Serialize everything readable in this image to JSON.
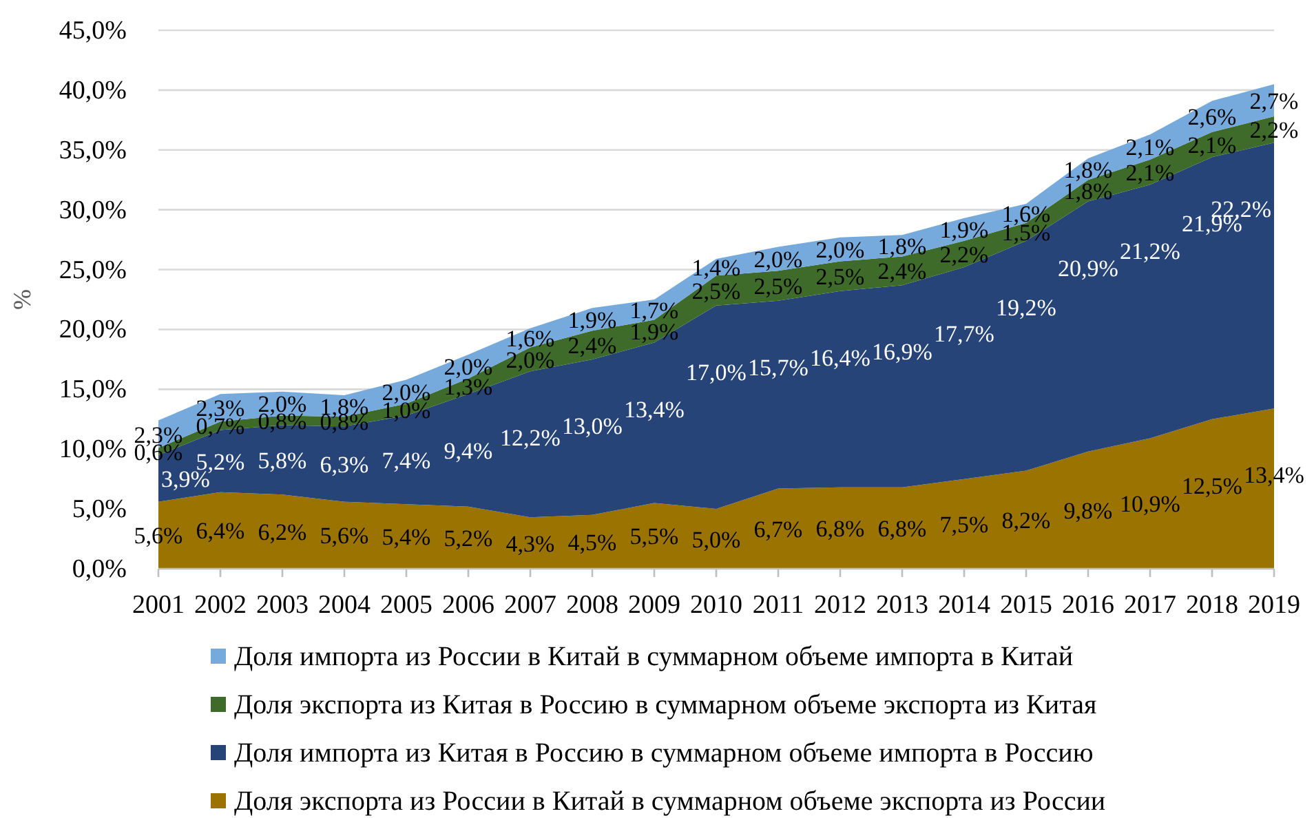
{
  "chart_data": {
    "type": "area",
    "stacked": true,
    "ylabel": "%",
    "categories": [
      "2001",
      "2002",
      "2003",
      "2004",
      "2005",
      "2006",
      "2007",
      "2008",
      "2009",
      "2010",
      "2011",
      "2012",
      "2013",
      "2014",
      "2015",
      "2016",
      "2017",
      "2018",
      "2019"
    ],
    "ylim": [
      0,
      45
    ],
    "yticks": [
      {
        "value": 0,
        "label": "0,0%"
      },
      {
        "value": 5,
        "label": "5,0%"
      },
      {
        "value": 10,
        "label": "10,0%"
      },
      {
        "value": 15,
        "label": "15,0%"
      },
      {
        "value": 20,
        "label": "20,0%"
      },
      {
        "value": 25,
        "label": "25,0%"
      },
      {
        "value": 30,
        "label": "30,0%"
      },
      {
        "value": 35,
        "label": "35,0%"
      },
      {
        "value": 40,
        "label": "40,0%"
      },
      {
        "value": 45,
        "label": "45,0%"
      }
    ],
    "grid": "y",
    "legend": "bottom",
    "series": [
      {
        "name": "Доля экспорта из России в Китай в суммарном объеме экспорта из России",
        "color": "#9a7300",
        "values": [
          5.6,
          6.4,
          6.2,
          5.6,
          5.4,
          5.2,
          4.3,
          4.5,
          5.5,
          5.0,
          6.7,
          6.8,
          6.8,
          7.5,
          8.2,
          9.8,
          10.9,
          12.5,
          13.4
        ],
        "value_labels": [
          "5,6%",
          "6,4%",
          "6,2%",
          "5,6%",
          "5,4%",
          "5,2%",
          "4,3%",
          "4,5%",
          "5,5%",
          "5,0%",
          "6,7%",
          "6,8%",
          "6,8%",
          "7,5%",
          "8,2%",
          "9,8%",
          "10,9%",
          "12,5%",
          "13,4%"
        ]
      },
      {
        "name": "Доля импорта из Китая в Россию в суммарном объеме импорта в Россию",
        "color": "#264478",
        "values": [
          3.9,
          5.2,
          5.8,
          6.3,
          7.4,
          9.4,
          12.2,
          13.0,
          13.4,
          17.0,
          15.7,
          16.4,
          16.9,
          17.7,
          19.2,
          20.9,
          21.2,
          21.9,
          22.2
        ],
        "value_labels": [
          "3,9%",
          "5,2%",
          "5,8%",
          "6,3%",
          "7,4%",
          "9,4%",
          "12,2%",
          "13,0%",
          "13,4%",
          "17,0%",
          "15,7%",
          "16,4%",
          "16,9%",
          "17,7%",
          "19,2%",
          "20,9%",
          "21,2%",
          "21,9%",
          "22,2%"
        ]
      },
      {
        "name": "Доля экспорта из Китая в Россию в суммарном объеме экспорта из Китая",
        "color": "#3e6b2a",
        "values": [
          0.6,
          0.7,
          0.8,
          0.8,
          1.0,
          1.3,
          2.0,
          2.4,
          1.9,
          2.5,
          2.5,
          2.5,
          2.4,
          2.2,
          1.5,
          1.8,
          2.1,
          2.1,
          2.2
        ],
        "value_labels": [
          "0,6%",
          "0,7%",
          "0,8%",
          "0,8%",
          "1,0%",
          "1,3%",
          "2,0%",
          "2,4%",
          "1,9%",
          "2,5%",
          "2,5%",
          "2,5%",
          "2,4%",
          "2,2%",
          "1,5%",
          "1,8%",
          "2,1%",
          "2,1%",
          "2,2%"
        ]
      },
      {
        "name": "Доля импорта из России в Китай в суммарном объеме импорта в Китай",
        "color": "#76a9dc",
        "values": [
          2.3,
          2.3,
          2.0,
          1.8,
          2.0,
          2.0,
          1.6,
          1.9,
          1.7,
          1.4,
          2.0,
          2.0,
          1.8,
          1.9,
          1.6,
          1.8,
          2.1,
          2.6,
          2.7
        ],
        "value_labels": [
          "2,3%",
          "2,3%",
          "2,0%",
          "1,8%",
          "2,0%",
          "2,0%",
          "1,6%",
          "1,9%",
          "1,7%",
          "1,4%",
          "2,0%",
          "2,0%",
          "1,8%",
          "1,9%",
          "1,6%",
          "1,8%",
          "2,1%",
          "2,6%",
          "2,7%"
        ]
      }
    ]
  }
}
